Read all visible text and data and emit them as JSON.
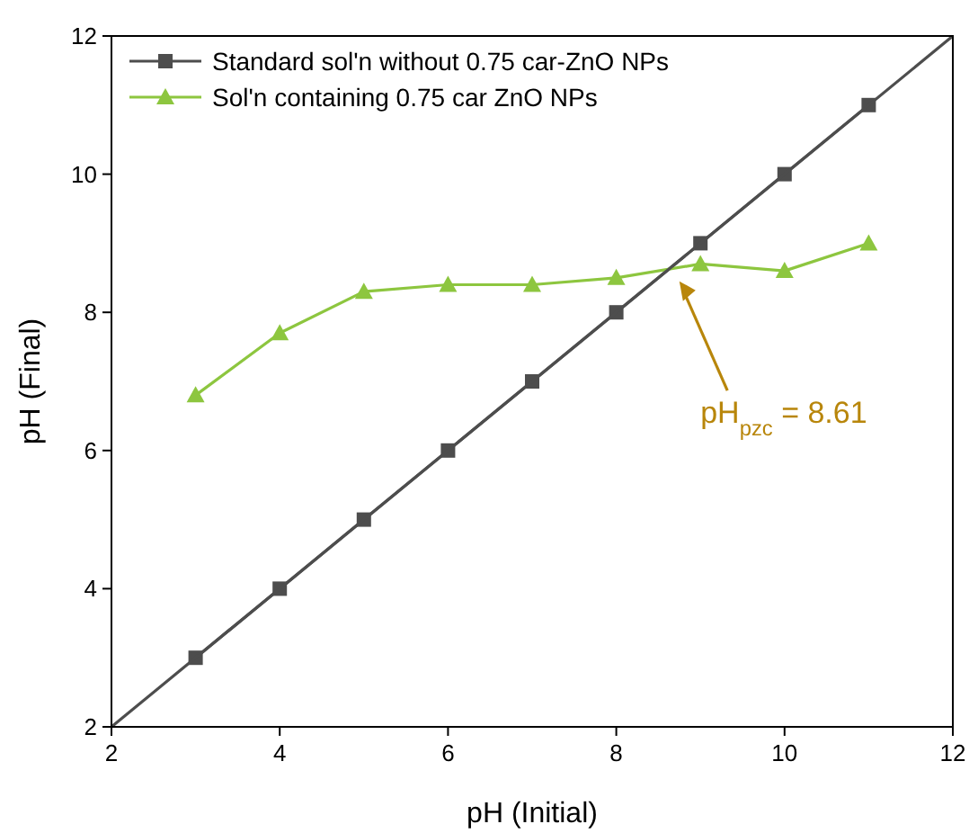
{
  "chart_data": {
    "type": "line",
    "xlabel": "pH (Initial)",
    "ylabel": "pH (Final)",
    "xlim": [
      2,
      12
    ],
    "ylim": [
      2,
      12
    ],
    "xticks": [
      2,
      4,
      6,
      8,
      10,
      12
    ],
    "yticks": [
      2,
      4,
      6,
      8,
      10,
      12
    ],
    "series": [
      {
        "name": "Standard sol'n without 0.75 car-ZnO NPs",
        "color": "#4d4d4d",
        "marker": "square",
        "x": [
          3,
          4,
          5,
          6,
          7,
          8,
          9,
          10,
          11
        ],
        "values": [
          3,
          4,
          5,
          6,
          7,
          8,
          9,
          10,
          11
        ]
      },
      {
        "name": "Sol'n containing 0.75 car ZnO NPs",
        "color": "#8dc63f",
        "marker": "triangle",
        "x": [
          3,
          4,
          5,
          6,
          7,
          8,
          9,
          10,
          11
        ],
        "values": [
          6.8,
          7.7,
          8.3,
          8.4,
          8.4,
          8.5,
          8.7,
          8.6,
          9.0
        ]
      },
      {
        "color": "#4d4d4d",
        "marker": "none",
        "x": [
          2,
          12
        ],
        "values": [
          2,
          12
        ]
      }
    ],
    "annotations": [
      "pH$_{pzc}$ = 8.61"
    ],
    "grid": false,
    "legend": "top left"
  }
}
